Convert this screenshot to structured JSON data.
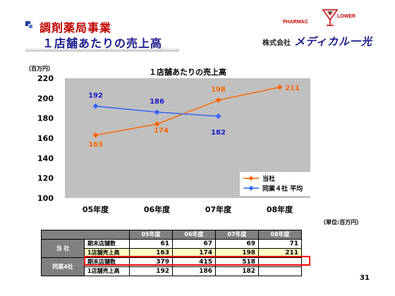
{
  "slide": {
    "title_line1": "調剤薬局事業",
    "title_line2": "１店舗あたりの売上高",
    "page_number": "31"
  },
  "logo": {
    "left_text": "PHARMAC",
    "right_text": "LOWER",
    "company_prefix": "株式会社",
    "company_name": "メディカル一光"
  },
  "chart_data": {
    "type": "line",
    "title": "１店舗あたりの売上高",
    "unit_label": "（百万円）",
    "categories": [
      "05年度",
      "06年度",
      "07年度",
      "08年度"
    ],
    "ylim": [
      100,
      220
    ],
    "yticks": [
      100,
      120,
      140,
      160,
      180,
      200,
      220
    ],
    "grid": false,
    "legend_position": "right-bottom",
    "series": [
      {
        "name": "当社",
        "values": [
          163,
          174,
          198,
          211
        ],
        "color": "#ff6600"
      },
      {
        "name": "同業４社 平均",
        "values": [
          192,
          186,
          182,
          null
        ],
        "color": "#3366ff"
      }
    ]
  },
  "table": {
    "unit": "（単位:百万円）",
    "headers": [
      "05年度",
      "06年度",
      "07年度",
      "08年度"
    ],
    "groups": [
      {
        "name": "当 社",
        "rows": [
          {
            "label": "期末店舗数",
            "values": [
              "61",
              "67",
              "69",
              "71"
            ]
          },
          {
            "label": "1店舗売上高",
            "values": [
              "163",
              "174",
              "198",
              "211"
            ]
          }
        ]
      },
      {
        "name": "同業4社",
        "rows": [
          {
            "label": "期末店舗数",
            "values": [
              "379",
              "415",
              "518",
              ""
            ]
          },
          {
            "label": "1店舗売上高",
            "values": [
              "192",
              "186",
              "182",
              ""
            ]
          }
        ]
      }
    ]
  }
}
